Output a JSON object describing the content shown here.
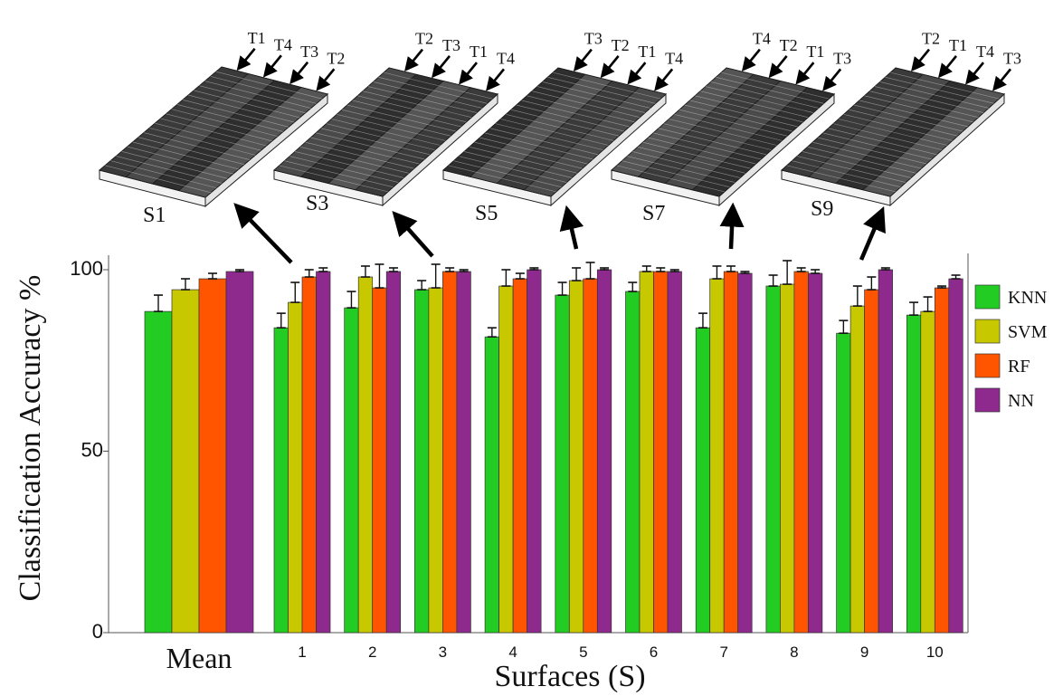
{
  "chart_data": {
    "type": "bar",
    "xlabel": "Surfaces (S)",
    "ylabel": "Classification Accuracy %",
    "ylim": [
      0,
      100
    ],
    "yticks": [
      "0",
      "50",
      "100"
    ],
    "categories": [
      "Mean",
      "1",
      "2",
      "3",
      "4",
      "5",
      "6",
      "7",
      "8",
      "9",
      "10"
    ],
    "series": [
      {
        "name": "KNN",
        "color": "#22cc22",
        "values": [
          88.5,
          84,
          89.5,
          94.5,
          81.5,
          93,
          94,
          84,
          95.5,
          82.5,
          87.5
        ],
        "errors": [
          4.5,
          4,
          4.5,
          2.5,
          2.5,
          3.5,
          2.5,
          4,
          3,
          3.5,
          3.5
        ]
      },
      {
        "name": "SVM",
        "color": "#c8c800",
        "values": [
          94.5,
          91,
          98,
          95,
          95.5,
          97,
          99.5,
          97.5,
          96,
          90,
          88.5
        ],
        "errors": [
          3,
          5.5,
          3,
          6.5,
          4.5,
          3.5,
          1.5,
          3.5,
          6.5,
          5.5,
          4
        ]
      },
      {
        "name": "RF",
        "color": "#ff5500",
        "values": [
          97.5,
          98,
          95,
          99.5,
          97.5,
          97.5,
          99.5,
          99.5,
          99.5,
          94.5,
          95
        ],
        "errors": [
          1.5,
          2,
          6.5,
          1,
          1.5,
          4.5,
          1,
          1.5,
          1,
          3.5,
          0.5
        ]
      },
      {
        "name": "NN",
        "color": "#8e2a8e",
        "values": [
          99.5,
          99.5,
          99.5,
          99.5,
          100,
          100,
          99.5,
          99,
          99,
          100,
          97.5
        ],
        "errors": [
          0.5,
          1,
          1,
          0.5,
          0.5,
          0.5,
          0.5,
          0.5,
          1,
          0.5,
          1
        ]
      }
    ],
    "legend": {
      "position": "right",
      "entries": [
        "KNN",
        "SVM",
        "RF",
        "NN"
      ]
    },
    "grid": false,
    "annotations": {
      "surfaces": [
        {
          "label": "S1",
          "tracks": [
            "T1",
            "T4",
            "T3",
            "T2"
          ],
          "points_to": "1"
        },
        {
          "label": "S3",
          "tracks": [
            "T2",
            "T3",
            "T1",
            "T4"
          ],
          "points_to": "3"
        },
        {
          "label": "S5",
          "tracks": [
            "T3",
            "T2",
            "T1",
            "T4"
          ],
          "points_to": "5"
        },
        {
          "label": "S7",
          "tracks": [
            "T4",
            "T2",
            "T1",
            "T3"
          ],
          "points_to": "7"
        },
        {
          "label": "S9",
          "tracks": [
            "T2",
            "T1",
            "T4",
            "T3"
          ],
          "points_to": "9"
        }
      ]
    }
  }
}
